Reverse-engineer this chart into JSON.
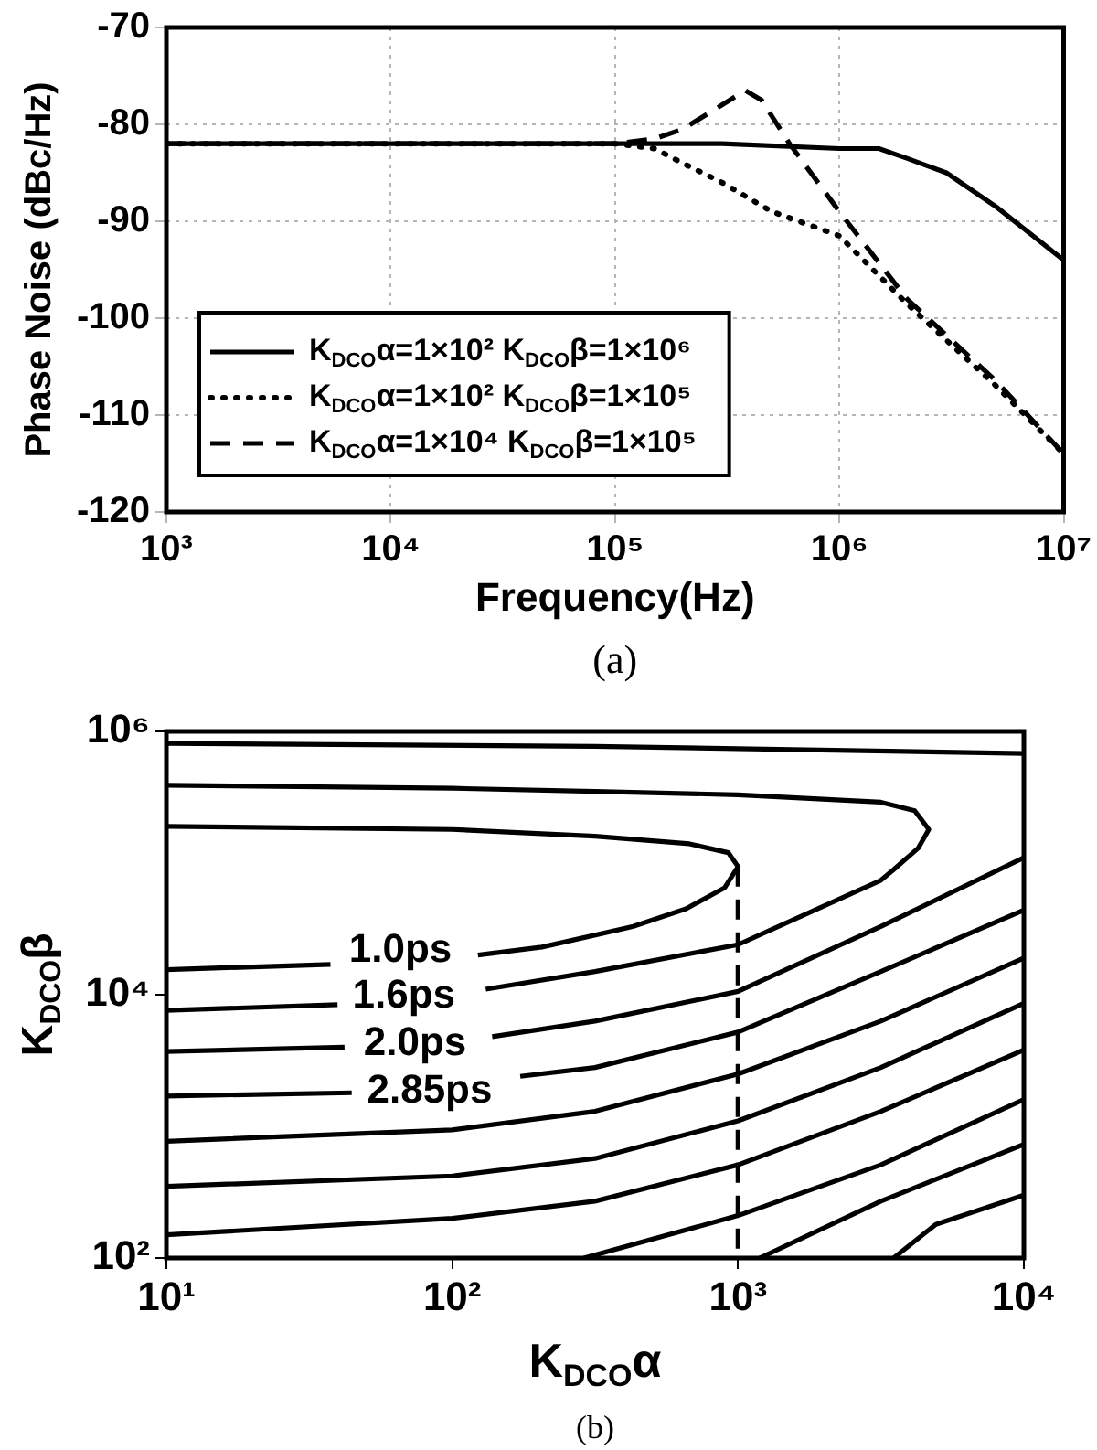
{
  "chart_data": [
    {
      "type": "line",
      "xlabel": "Frequency(Hz)",
      "ylabel": "Phase Noise (dBc/Hz)",
      "log": "x",
      "xlim": [
        1000,
        10000000
      ],
      "xticks": [
        {
          "value": 1000,
          "label": "10³"
        },
        {
          "value": 10000,
          "label": "10⁴"
        },
        {
          "value": 100000,
          "label": "10⁵"
        },
        {
          "value": 1000000,
          "label": "10⁶"
        },
        {
          "value": 10000000,
          "label": "10⁷"
        }
      ],
      "ylim": [
        -120,
        -70
      ],
      "yticks": [
        -120,
        -110,
        -100,
        -90,
        -80,
        -70
      ],
      "grid": true,
      "legend": "bottom left",
      "marker": "none",
      "annotations": [
        "(a)"
      ],
      "series": [
        {
          "name": "K$_{DCO}$α=1×10² K$_{DCO}$β=1×10⁶",
          "color": "#000000",
          "line_style": "solid",
          "x": [
            1000,
            10000,
            100000,
            300000,
            1000000,
            1500000,
            2000000,
            3000000,
            5000000,
            10000000
          ],
          "values": [
            -82,
            -82,
            -82,
            -82,
            -82.5,
            -82.5,
            -83.5,
            -85,
            -88.5,
            -94
          ]
        },
        {
          "name": "K$_{DCO}$α=1×10² K$_{DCO}$β=1×10⁵",
          "color": "#000000",
          "line_style": "dotted",
          "x": [
            1000,
            100000,
            150000,
            200000,
            300000,
            500000,
            1000000,
            2000000,
            5000000,
            10000000
          ],
          "values": [
            -82,
            -82,
            -82.5,
            -84,
            -86,
            -89,
            -91.5,
            -98.5,
            -107,
            -114
          ]
        },
        {
          "name": "K$_{DCO}$α=1×10⁴ K$_{DCO}$β=1×10⁵",
          "color": "#000000",
          "line_style": "dashed",
          "x": [
            1000,
            100000,
            150000,
            200000,
            300000,
            380000,
            450000,
            600000,
            1000000,
            2000000,
            5000000,
            10000000
          ],
          "values": [
            -82,
            -82,
            -81.5,
            -80.5,
            -78,
            -76.5,
            -77.5,
            -82,
            -89,
            -98,
            -106.5,
            -114
          ]
        }
      ]
    },
    {
      "type": "line",
      "xlabel": "K$_{DCO}$α",
      "ylabel": "K$_{DCO}$β",
      "log": "xy",
      "xlim": [
        10,
        10000
      ],
      "xticks": [
        {
          "value": 10,
          "label": "10¹"
        },
        {
          "value": 100,
          "label": "10²"
        },
        {
          "value": 1000,
          "label": "10³"
        },
        {
          "value": 10000,
          "label": "10⁴"
        }
      ],
      "ylim": [
        100,
        1000000
      ],
      "yticks": [
        {
          "value": 100,
          "label": "10²"
        },
        {
          "value": 10000,
          "label": "10⁴"
        },
        {
          "value": 1000000,
          "label": "10⁶"
        }
      ],
      "marker": "none",
      "annotations": [
        "1.0ps",
        "1.6ps",
        "2.0ps",
        "2.85ps",
        "(b)"
      ],
      "series": [
        {
          "color": "#000000",
          "line_style": "solid",
          "x": [
            10,
            316,
            10000
          ],
          "values": [
            810000,
            770000,
            680000
          ]
        },
        {
          "color": "#000000",
          "line_style": "solid",
          "x": [
            10,
            100,
            316,
            1000,
            3160,
            4150,
            4650,
            4270,
            3500,
            3160,
            1000,
            316,
            131,
            70,
            39.7,
            10
          ],
          "values": [
            390000,
            370000,
            350000,
            330000,
            290000,
            250000,
            180000,
            130000,
            89000,
            74000,
            24000,
            15000,
            11000,
            null,
            8400,
            7600
          ]
        },
        {
          "color": "#000000",
          "line_style": "solid",
          "x": [
            10,
            100,
            316,
            676,
            924,
            1000,
            898,
            658,
            430,
            206,
            123,
            70,
            37.5,
            10
          ],
          "values": [
            190000,
            180000,
            160000,
            140000,
            120000,
            94000,
            65000,
            45000,
            33000,
            23000,
            20000,
            null,
            17000,
            15500
          ]
        },
        {
          "color": "#000000",
          "line_style": "solid",
          "x": [
            10000,
            3160,
            1000,
            316,
            138,
            80,
            42,
            10
          ],
          "values": [
            110000,
            33000,
            10600,
            6300,
            4800,
            null,
            4000,
            3700
          ]
        },
        {
          "color": "#000000",
          "line_style": "solid",
          "x": [
            10000,
            3160,
            1000,
            316,
            173,
            90,
            44.5,
            10
          ],
          "values": [
            44000,
            15000,
            5200,
            2800,
            2400,
            null,
            1800,
            1700
          ]
        },
        {
          "color": "#000000",
          "line_style": "solid",
          "x": [
            10000,
            3160,
            1000,
            316,
            100,
            10
          ],
          "values": [
            19000,
            6300,
            2500,
            1300,
            940,
            770
          ]
        },
        {
          "color": "#000000",
          "line_style": "solid",
          "x": [
            10000,
            3160,
            1000,
            316,
            100,
            10
          ],
          "values": [
            8600,
            2800,
            1100,
            570,
            420,
            350
          ]
        },
        {
          "color": "#000000",
          "line_style": "solid",
          "x": [
            10000,
            3160,
            1000,
            316,
            100,
            10
          ],
          "values": [
            3800,
            1300,
            510,
            270,
            200,
            150
          ]
        },
        {
          "color": "#000000",
          "line_style": "solid",
          "x": [
            10000,
            3160,
            1000,
            289
          ],
          "values": [
            1600,
            510,
            210,
            100
          ]
        },
        {
          "color": "#000000",
          "line_style": "solid",
          "x": [
            10000,
            3160,
            1190
          ],
          "values": [
            730,
            270,
            100
          ]
        },
        {
          "color": "#000000",
          "line_style": "solid",
          "x": [
            10000,
            4920,
            3500
          ],
          "values": [
            300,
            180,
            100
          ]
        },
        {
          "color": "#000000",
          "line_style": "dashed",
          "x": [
            1000,
            1000,
            1000,
            1000
          ],
          "values": [
            94000,
            10000,
            1000,
            100
          ]
        }
      ]
    }
  ]
}
